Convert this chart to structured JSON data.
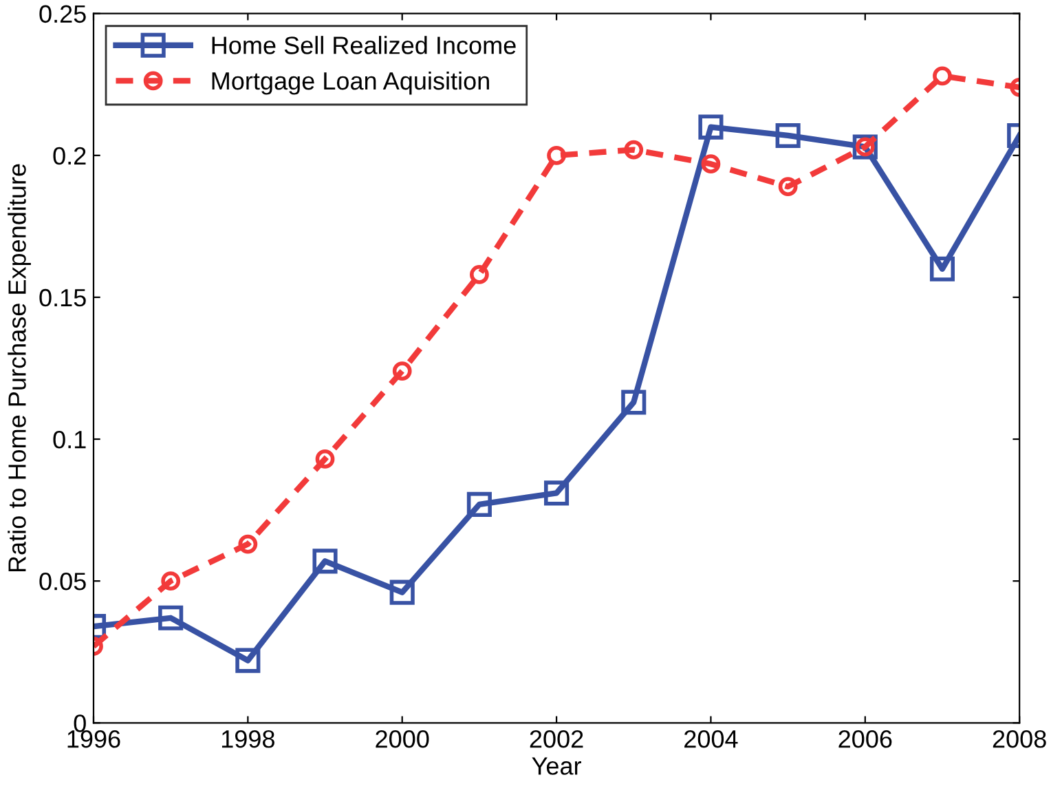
{
  "chart_data": {
    "type": "line",
    "xlabel": "Year",
    "ylabel": "Ratio to Home Purchase Expenditure",
    "x": [
      1996,
      1997,
      1998,
      1999,
      2000,
      2001,
      2002,
      2003,
      2004,
      2005,
      2006,
      2007,
      2008
    ],
    "series": [
      {
        "name": "Home Sell Realized Income",
        "color": "#3852a4",
        "marker": "square",
        "line_style": "solid",
        "values": [
          0.034,
          0.037,
          0.022,
          0.057,
          0.046,
          0.077,
          0.081,
          0.113,
          0.21,
          0.207,
          0.203,
          0.16,
          0.207
        ]
      },
      {
        "name": "Mortgage Loan Aquisition",
        "color": "#f23a3a",
        "marker": "circle",
        "line_style": "dashed",
        "values": [
          0.027,
          0.05,
          0.063,
          0.093,
          0.124,
          0.158,
          0.2,
          0.202,
          0.197,
          0.189,
          0.203,
          0.228,
          0.224
        ]
      }
    ],
    "xlim": [
      1996,
      2008
    ],
    "xticks": [
      1996,
      1998,
      2000,
      2002,
      2004,
      2006,
      2008
    ],
    "ylim": [
      0,
      0.25
    ],
    "yticks": [
      0,
      0.05,
      0.1,
      0.15,
      0.2,
      0.25
    ],
    "grid": false,
    "legend": "top left"
  }
}
